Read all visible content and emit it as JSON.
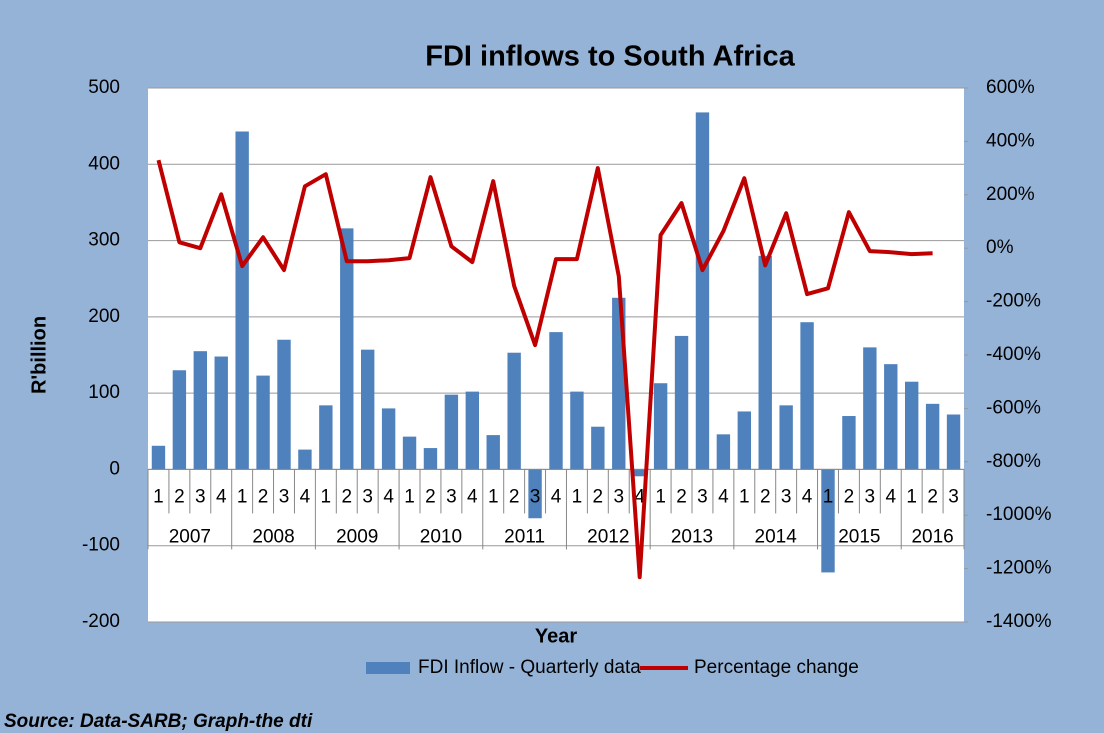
{
  "chart_data": {
    "type": "bar_line",
    "title": "FDI inflows to South Africa",
    "x_label": "Year",
    "y_label": "R'billion",
    "source": "Source: Data-SARB; Graph-the dti",
    "categories": [
      "1",
      "2",
      "3",
      "4",
      "1",
      "2",
      "3",
      "4",
      "1",
      "2",
      "3",
      "4",
      "1",
      "2",
      "3",
      "4",
      "1",
      "2",
      "3",
      "4",
      "1",
      "2",
      "3",
      "4",
      "1",
      "2",
      "3",
      "4",
      "1",
      "2",
      "3",
      "4",
      "1",
      "2",
      "3",
      "4",
      "1",
      "2",
      "3"
    ],
    "year_groups": [
      {
        "label": "2007",
        "count": 4
      },
      {
        "label": "2008",
        "count": 4
      },
      {
        "label": "2009",
        "count": 4
      },
      {
        "label": "2010",
        "count": 4
      },
      {
        "label": "2011",
        "count": 4
      },
      {
        "label": "2012",
        "count": 4
      },
      {
        "label": "2013",
        "count": 4
      },
      {
        "label": "2014",
        "count": 4
      },
      {
        "label": "2015",
        "count": 4
      },
      {
        "label": "2016",
        "count": 3
      }
    ],
    "series": [
      {
        "name": "FDI Inflow - Quarterly data",
        "type": "bar",
        "color": "#4f81bd",
        "values": [
          31,
          130,
          155,
          148,
          443,
          123,
          170,
          26,
          84,
          316,
          157,
          80,
          43,
          28,
          98,
          102,
          45,
          153,
          -64,
          180,
          102,
          56,
          225,
          -9,
          113,
          175,
          468,
          46,
          76,
          280,
          84,
          193,
          -135,
          70,
          160,
          138,
          115,
          86,
          72
        ]
      },
      {
        "name": "Percentage change",
        "type": "line",
        "axis": "y2",
        "color": "#c00000",
        "values": [
          330,
          22,
          0,
          202,
          -67,
          41,
          -82,
          232,
          277,
          -49,
          -49,
          -45,
          -37,
          266,
          7,
          -52,
          251,
          -142,
          -363,
          -41,
          -41,
          300,
          -105,
          -1232,
          49,
          169,
          -82,
          64,
          262,
          -64,
          131,
          -172,
          -150,
          135,
          -11,
          -15,
          -22,
          -19,
          null
        ]
      }
    ],
    "ylim": [
      -200,
      500
    ],
    "yticks": [
      -200,
      -100,
      0,
      100,
      200,
      300,
      400,
      500
    ],
    "y2lim": [
      -1400,
      600
    ],
    "y2ticks": [
      {
        "value": -1400,
        "label": "-1400%"
      },
      {
        "value": -1200,
        "label": "-1200%"
      },
      {
        "value": -1000,
        "label": "-1000%"
      },
      {
        "value": -800,
        "label": "-800%"
      },
      {
        "value": -600,
        "label": "-600%"
      },
      {
        "value": -400,
        "label": "-400%"
      },
      {
        "value": -200,
        "label": "-200%"
      },
      {
        "value": 0,
        "label": "0%"
      },
      {
        "value": 200,
        "label": "200%"
      },
      {
        "value": 400,
        "label": "400%"
      },
      {
        "value": 600,
        "label": "600%"
      }
    ],
    "grid": true,
    "legend": "bottom"
  }
}
